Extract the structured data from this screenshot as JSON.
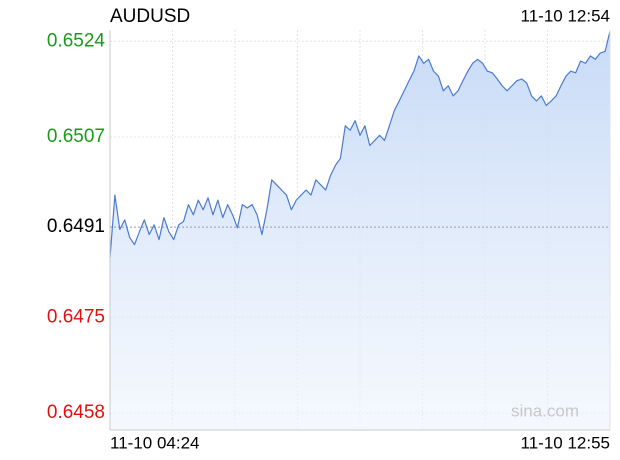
{
  "chart_data": {
    "type": "line",
    "title": "AUDUSD",
    "timestamp": "11-10 12:54",
    "watermark": "sina.com",
    "x_labels": [
      "11-10 04:24",
      "11-10 12:55"
    ],
    "ylim": [
      0.6455,
      0.6526
    ],
    "yticks": [
      0.6524,
      0.6507,
      0.6491,
      0.6475,
      0.6458
    ],
    "ytick_colors": [
      "#1a9a1a",
      "#1a9a1a",
      "#000000",
      "#e01010",
      "#e01010"
    ],
    "reference_line": 0.6491,
    "grid": true,
    "series": [
      {
        "name": "AUDUSD",
        "color": "#4a7bd0",
        "values": [
          0.64856,
          0.64967,
          0.64906,
          0.64923,
          0.64892,
          0.64879,
          0.64902,
          0.64923,
          0.64897,
          0.64914,
          0.64888,
          0.64927,
          0.64902,
          0.64888,
          0.64914,
          0.6492,
          0.6495,
          0.64932,
          0.64958,
          0.64941,
          0.64962,
          0.64932,
          0.64958,
          0.64927,
          0.6495,
          0.64932,
          0.64909,
          0.6495,
          0.64944,
          0.6495,
          0.64932,
          0.64897,
          0.64941,
          0.64994,
          0.64985,
          0.64976,
          0.64967,
          0.64941,
          0.64958,
          0.64967,
          0.64976,
          0.64967,
          0.64994,
          0.64985,
          0.64976,
          0.65002,
          0.6502,
          0.65032,
          0.6509,
          0.65082,
          0.65099,
          0.65073,
          0.6509,
          0.65055,
          0.65064,
          0.65073,
          0.65064,
          0.6509,
          0.65117,
          0.65134,
          0.65152,
          0.6517,
          0.65187,
          0.65214,
          0.65201,
          0.65208,
          0.65187,
          0.65178,
          0.65152,
          0.65161,
          0.65143,
          0.65152,
          0.6517,
          0.65187,
          0.65201,
          0.65208,
          0.65201,
          0.65187,
          0.65184,
          0.65173,
          0.65161,
          0.65152,
          0.65161,
          0.6517,
          0.65173,
          0.65166,
          0.65143,
          0.65134,
          0.65143,
          0.65126,
          0.65134,
          0.65143,
          0.65161,
          0.65178,
          0.65187,
          0.65184,
          0.65205,
          0.65201,
          0.65214,
          0.65208,
          0.65219,
          0.65222,
          0.65258
        ]
      }
    ]
  }
}
